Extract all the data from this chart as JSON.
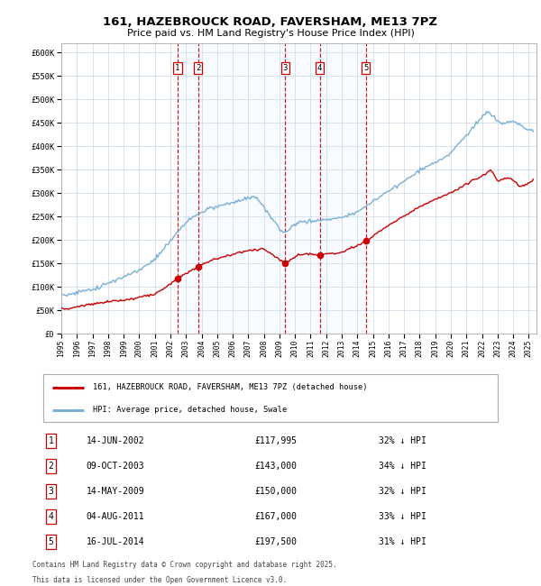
{
  "title_line1": "161, HAZEBROUCK ROAD, FAVERSHAM, ME13 7PZ",
  "title_line2": "Price paid vs. HM Land Registry's House Price Index (HPI)",
  "legend_label_red": "161, HAZEBROUCK ROAD, FAVERSHAM, ME13 7PZ (detached house)",
  "legend_label_blue": "HPI: Average price, detached house, Swale",
  "footer_line1": "Contains HM Land Registry data © Crown copyright and database right 2025.",
  "footer_line2": "This data is licensed under the Open Government Licence v3.0.",
  "ytick_labels": [
    "£0",
    "£50K",
    "£100K",
    "£150K",
    "£200K",
    "£250K",
    "£300K",
    "£350K",
    "£400K",
    "£450K",
    "£500K",
    "£550K",
    "£600K"
  ],
  "yticks": [
    0,
    50000,
    100000,
    150000,
    200000,
    250000,
    300000,
    350000,
    400000,
    450000,
    500000,
    550000,
    600000
  ],
  "ymax": 620000,
  "xmin": 1995.0,
  "xmax": 2025.5,
  "sale_dates_dec": [
    2002.456,
    2003.772,
    2009.368,
    2011.589,
    2014.539
  ],
  "sale_prices": [
    117995,
    143000,
    150000,
    167000,
    197500
  ],
  "sale_labels": [
    "1",
    "2",
    "3",
    "4",
    "5"
  ],
  "table_rows": [
    [
      "1",
      "14-JUN-2002",
      "£117,995",
      "32% ↓ HPI"
    ],
    [
      "2",
      "09-OCT-2003",
      "£143,000",
      "34% ↓ HPI"
    ],
    [
      "3",
      "14-MAY-2009",
      "£150,000",
      "32% ↓ HPI"
    ],
    [
      "4",
      "04-AUG-2011",
      "£167,000",
      "33% ↓ HPI"
    ],
    [
      "5",
      "16-JUL-2014",
      "£197,500",
      "31% ↓ HPI"
    ]
  ],
  "red_color": "#cc0000",
  "blue_color": "#7ab0d4",
  "shade_color": "#ddeeff",
  "bg_color": "#ffffff",
  "grid_color": "#c8d8e8",
  "border_color": "#aaaaaa",
  "xtick_years": [
    1995,
    1996,
    1997,
    1998,
    1999,
    2000,
    2001,
    2002,
    2003,
    2004,
    2005,
    2006,
    2007,
    2008,
    2009,
    2010,
    2011,
    2012,
    2013,
    2014,
    2015,
    2016,
    2017,
    2018,
    2019,
    2020,
    2021,
    2022,
    2023,
    2024,
    2025
  ]
}
